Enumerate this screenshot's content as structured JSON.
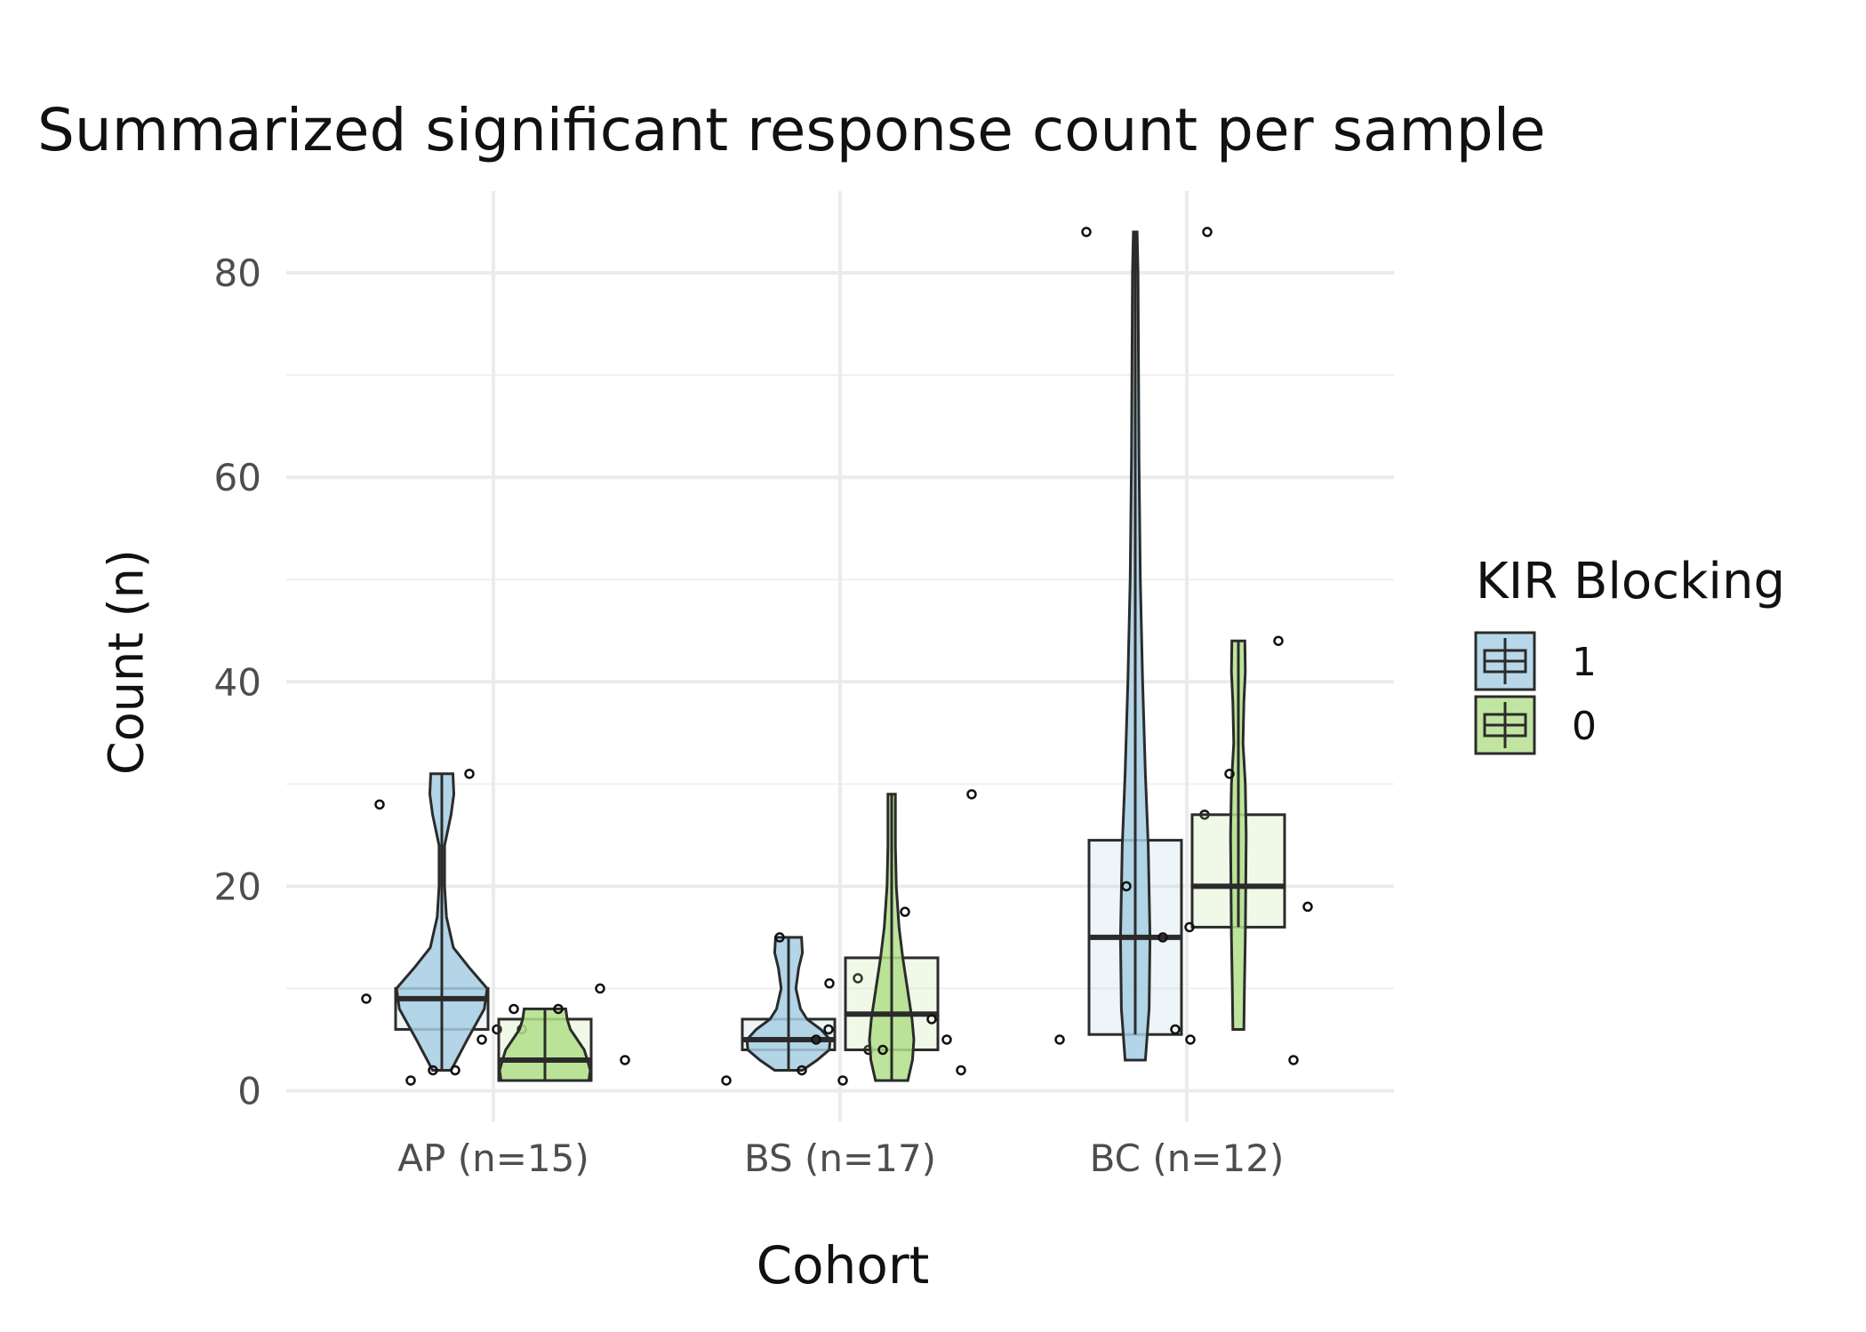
{
  "chart_data": {
    "type": "violin+box",
    "title": "Summarized significant response count per sample",
    "xlabel": "Cohort",
    "ylabel": "Count (n)",
    "ylim": [
      -3,
      88
    ],
    "y_ticks": [
      0,
      20,
      40,
      60,
      80
    ],
    "grid": true,
    "legend": {
      "title": "KIR Blocking",
      "placement": "right",
      "entries": [
        {
          "label": "1",
          "color": "#a6cee3"
        },
        {
          "label": "0",
          "color": "#b2df8a"
        }
      ]
    },
    "categories": [
      "AP (n=15)",
      "BS (n=17)",
      "BC (n=12)"
    ],
    "series": [
      {
        "name": "1",
        "color": "#a6cee3",
        "groups": [
          {
            "category": "AP (n=15)",
            "min": 2,
            "q1": 6,
            "median": 9,
            "q3": 10,
            "max": 31,
            "violin": [
              [
                2,
                0.2
              ],
              [
                5,
                0.55
              ],
              [
                8,
                0.92
              ],
              [
                10,
                0.98
              ],
              [
                12,
                0.6
              ],
              [
                14,
                0.25
              ],
              [
                17,
                0.1
              ],
              [
                20,
                0.06
              ],
              [
                24,
                0.06
              ],
              [
                27,
                0.2
              ],
              [
                29,
                0.26
              ],
              [
                31,
                0.24
              ]
            ],
            "points": [
              9,
              6,
              1,
              6,
              2,
              28,
              5,
              2
            ]
          },
          {
            "category": "BS (n=17)",
            "min": 2,
            "q1": 4,
            "median": 5,
            "q3": 7,
            "max": 15,
            "violin": [
              [
                2,
                0.3
              ],
              [
                3,
                0.62
              ],
              [
                4,
                0.88
              ],
              [
                5,
                0.9
              ],
              [
                6,
                0.7
              ],
              [
                7,
                0.4
              ],
              [
                8,
                0.26
              ],
              [
                10,
                0.16
              ],
              [
                12,
                0.22
              ],
              [
                13.5,
                0.3
              ],
              [
                15,
                0.28
              ]
            ],
            "points": [
              4,
              2,
              1,
              6,
              15,
              11
            ]
          },
          {
            "category": "BC (n=12)",
            "min": 5.5,
            "q1": 5.5,
            "median": 15,
            "q3": 24.5,
            "max": 84,
            "violin": [
              [
                3,
                0.22
              ],
              [
                8,
                0.3
              ],
              [
                15,
                0.32
              ],
              [
                24,
                0.28
              ],
              [
                31,
                0.22
              ],
              [
                40,
                0.16
              ],
              [
                50,
                0.11
              ],
              [
                62,
                0.08
              ],
              [
                72,
                0.07
              ],
              [
                80,
                0.06
              ],
              [
                84,
                0.04
              ]
            ],
            "points": [
              6,
              20,
              27,
              84,
              5,
              5
            ]
          }
        ]
      },
      {
        "name": "0",
        "color": "#b2df8a",
        "groups": [
          {
            "category": "AP (n=15)",
            "min": 1,
            "q1": 1,
            "median": 3,
            "q3": 7,
            "max": 8,
            "violin": [
              [
                1,
                0.95
              ],
              [
                2,
                0.98
              ],
              [
                3,
                0.92
              ],
              [
                4,
                0.85
              ],
              [
                5,
                0.7
              ],
              [
                6,
                0.55
              ],
              [
                7,
                0.48
              ],
              [
                8,
                0.45
              ]
            ],
            "points": [
              31,
              10,
              8,
              3,
              8
            ]
          },
          {
            "category": "BS (n=17)",
            "min": 1,
            "q1": 4,
            "median": 7.5,
            "q3": 13,
            "max": 29,
            "violin": [
              [
                1,
                0.35
              ],
              [
                3,
                0.45
              ],
              [
                5,
                0.48
              ],
              [
                7,
                0.44
              ],
              [
                10,
                0.34
              ],
              [
                13,
                0.24
              ],
              [
                16,
                0.16
              ],
              [
                20,
                0.1
              ],
              [
                24,
                0.08
              ],
              [
                27,
                0.08
              ],
              [
                29,
                0.08
              ]
            ],
            "points": [
              29,
              17.5,
              10.5,
              7,
              4,
              2,
              1,
              5,
              5
            ]
          },
          {
            "category": "BC (n=12)",
            "min": 16,
            "q1": 16,
            "median": 20,
            "q3": 27,
            "max": 44,
            "violin": [
              [
                6,
                0.12
              ],
              [
                10,
                0.13
              ],
              [
                15,
                0.15
              ],
              [
                20,
                0.16
              ],
              [
                25,
                0.17
              ],
              [
                30,
                0.15
              ],
              [
                34,
                0.1
              ],
              [
                38,
                0.12
              ],
              [
                41,
                0.15
              ],
              [
                44,
                0.14
              ]
            ],
            "points": [
              44,
              31,
              18,
              16,
              15,
              3,
              84
            ]
          }
        ]
      }
    ]
  }
}
